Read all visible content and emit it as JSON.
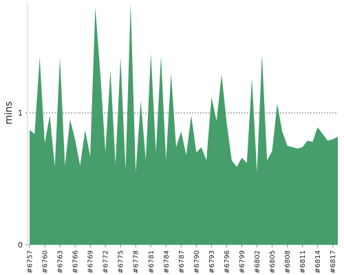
{
  "chart_data": {
    "type": "area",
    "ylabel": "mins",
    "ylim": [
      0,
      1.83
    ],
    "yticks": [
      0,
      1
    ],
    "gridlines": [
      1
    ],
    "color": "#469e6b",
    "x_tick_labels": [
      "#6757",
      "#6760",
      "#6763",
      "#6766",
      "#6769",
      "#6772",
      "#6775",
      "#6778",
      "#6781",
      "#6784",
      "#6787",
      "#6790",
      "#6793",
      "#6796",
      "#6799",
      "#6802",
      "#6805",
      "#6808",
      "#6811",
      "#6814",
      "#6817"
    ],
    "categories": [
      "#6757",
      "#6758",
      "#6759",
      "#6760",
      "#6761",
      "#6762",
      "#6763",
      "#6764",
      "#6765",
      "#6766",
      "#6767",
      "#6768",
      "#6769",
      "#6770",
      "#6771",
      "#6772",
      "#6773",
      "#6774",
      "#6775",
      "#6776",
      "#6777",
      "#6778",
      "#6779",
      "#6780",
      "#6781",
      "#6782",
      "#6783",
      "#6784",
      "#6785",
      "#6786",
      "#6787",
      "#6788",
      "#6789",
      "#6790",
      "#6791",
      "#6792",
      "#6793",
      "#6794",
      "#6795",
      "#6796",
      "#6797",
      "#6798",
      "#6799",
      "#6800",
      "#6801",
      "#6802",
      "#6803",
      "#6804",
      "#6805",
      "#6806",
      "#6807",
      "#6808",
      "#6809",
      "#6810",
      "#6811",
      "#6812",
      "#6813",
      "#6814",
      "#6815",
      "#6816",
      "#6817",
      "#6818"
    ],
    "values": [
      0.87,
      0.84,
      1.42,
      0.77,
      0.98,
      0.59,
      1.42,
      0.6,
      0.95,
      0.8,
      0.6,
      0.87,
      0.67,
      1.8,
      1.3,
      0.7,
      1.32,
      0.61,
      1.42,
      0.57,
      1.83,
      0.55,
      1.09,
      0.64,
      1.45,
      0.7,
      1.43,
      0.64,
      1.3,
      0.74,
      0.86,
      0.68,
      0.98,
      0.7,
      0.74,
      0.64,
      1.12,
      0.94,
      1.29,
      0.93,
      0.64,
      0.59,
      0.66,
      0.62,
      1.26,
      0.55,
      1.44,
      0.64,
      0.71,
      1.07,
      0.86,
      0.75,
      0.74,
      0.73,
      0.74,
      0.79,
      0.78,
      0.89,
      0.84,
      0.79,
      0.8,
      0.82
    ]
  }
}
